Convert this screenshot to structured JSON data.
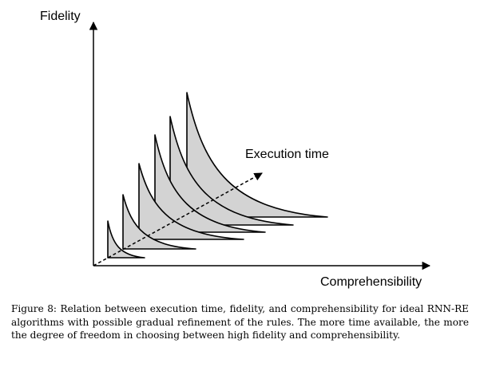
{
  "figure": {
    "y_axis_label": "Fidelity",
    "x_axis_label": "Comprehensibility",
    "depth_axis_label": "Execution time",
    "fill_color": "#d3d3d3",
    "stroke_color": "#000000"
  },
  "caption": {
    "text": "Figure 8: Relation between execution time, fidelity, and comprehensibility for ideal RNN-RE algorithms with possible gradual refinement of the rules. The more time available, the more the degree of freedom in choosing between high fidelity and comprehensibility."
  }
}
